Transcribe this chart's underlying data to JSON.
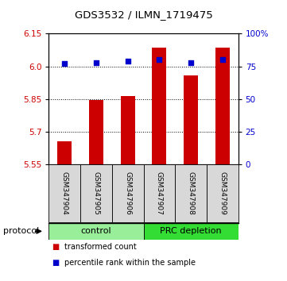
{
  "title": "GDS3532 / ILMN_1719475",
  "samples": [
    "GSM347904",
    "GSM347905",
    "GSM347906",
    "GSM347907",
    "GSM347908",
    "GSM347909"
  ],
  "red_values": [
    5.655,
    5.845,
    5.865,
    6.085,
    5.96,
    6.085
  ],
  "blue_values": [
    77,
    78,
    79,
    80,
    78,
    80
  ],
  "ylim_left": [
    5.55,
    6.15
  ],
  "ylim_right": [
    0,
    100
  ],
  "yticks_left": [
    5.55,
    5.7,
    5.85,
    6.0,
    6.15
  ],
  "yticks_right": [
    0,
    25,
    50,
    75,
    100
  ],
  "ytick_labels_right": [
    "0",
    "25",
    "50",
    "75",
    "100%"
  ],
  "groups": [
    {
      "label": "control",
      "indices": [
        0,
        1,
        2
      ],
      "color": "#99ee99"
    },
    {
      "label": "PRC depletion",
      "indices": [
        3,
        4,
        5
      ],
      "color": "#33dd33"
    }
  ],
  "protocol_label": "protocol",
  "bar_color": "#cc0000",
  "dot_color": "#0000cc",
  "sample_bg": "#d8d8d8",
  "bar_width": 0.45,
  "dot_size": 18,
  "legend_items": [
    {
      "color": "#cc0000",
      "label": "transformed count"
    },
    {
      "color": "#0000cc",
      "label": "percentile rank within the sample"
    }
  ]
}
